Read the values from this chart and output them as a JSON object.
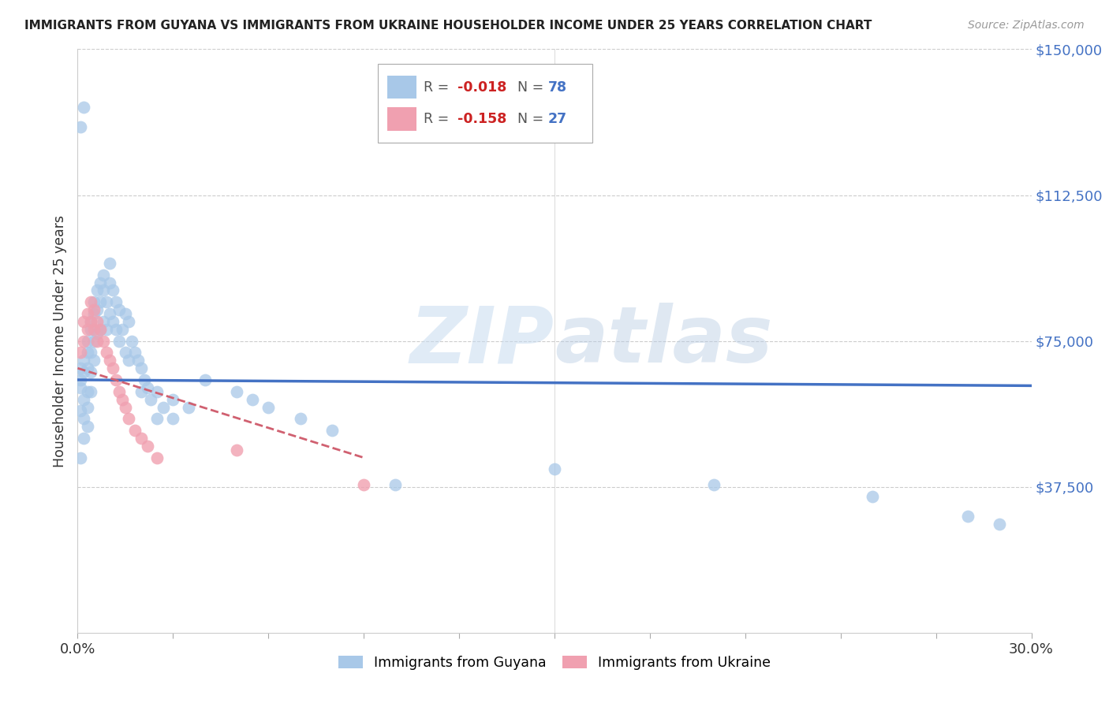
{
  "title": "IMMIGRANTS FROM GUYANA VS IMMIGRANTS FROM UKRAINE HOUSEHOLDER INCOME UNDER 25 YEARS CORRELATION CHART",
  "source": "Source: ZipAtlas.com",
  "ylabel": "Householder Income Under 25 years",
  "xlim": [
    0.0,
    0.3
  ],
  "ylim": [
    0,
    150000
  ],
  "yticks": [
    0,
    37500,
    75000,
    112500,
    150000
  ],
  "ytick_labels": [
    "",
    "$37,500",
    "$75,000",
    "$112,500",
    "$150,000"
  ],
  "watermark_zip": "ZIP",
  "watermark_atlas": "atlas",
  "legend_R1": "R = ",
  "legend_V1": "-0.018",
  "legend_N1_label": "N = ",
  "legend_N1_val": "78",
  "legend_R2": "R = ",
  "legend_V2": "-0.158",
  "legend_N2_label": "N = ",
  "legend_N2_val": "27",
  "color_guyana": "#a8c8e8",
  "color_ukraine": "#f0a0b0",
  "line_color_guyana": "#4472c4",
  "line_color_ukraine": "#d06070",
  "legend_text_color": "#555555",
  "legend_R_color": "#cc2222",
  "legend_N_color": "#4472c4",
  "background_color": "#ffffff",
  "guyana_x": [
    0.001,
    0.001,
    0.001,
    0.001,
    0.001,
    0.002,
    0.002,
    0.002,
    0.002,
    0.002,
    0.003,
    0.003,
    0.003,
    0.003,
    0.003,
    0.003,
    0.004,
    0.004,
    0.004,
    0.004,
    0.004,
    0.005,
    0.005,
    0.005,
    0.005,
    0.006,
    0.006,
    0.006,
    0.007,
    0.007,
    0.007,
    0.008,
    0.008,
    0.008,
    0.009,
    0.009,
    0.01,
    0.01,
    0.01,
    0.011,
    0.011,
    0.012,
    0.012,
    0.013,
    0.013,
    0.014,
    0.015,
    0.015,
    0.016,
    0.016,
    0.017,
    0.018,
    0.019,
    0.02,
    0.02,
    0.021,
    0.022,
    0.023,
    0.025,
    0.025,
    0.027,
    0.03,
    0.03,
    0.035,
    0.04,
    0.05,
    0.055,
    0.06,
    0.07,
    0.08,
    0.1,
    0.15,
    0.2,
    0.25,
    0.28,
    0.29,
    0.001,
    0.002
  ],
  "guyana_y": [
    63000,
    65000,
    68000,
    57000,
    45000,
    67000,
    70000,
    60000,
    55000,
    50000,
    72000,
    75000,
    68000,
    62000,
    58000,
    53000,
    80000,
    78000,
    72000,
    67000,
    62000,
    85000,
    82000,
    75000,
    70000,
    88000,
    83000,
    77000,
    90000,
    85000,
    78000,
    92000,
    88000,
    80000,
    85000,
    78000,
    95000,
    90000,
    82000,
    88000,
    80000,
    85000,
    78000,
    83000,
    75000,
    78000,
    82000,
    72000,
    80000,
    70000,
    75000,
    72000,
    70000,
    68000,
    62000,
    65000,
    63000,
    60000,
    62000,
    55000,
    58000,
    60000,
    55000,
    58000,
    65000,
    62000,
    60000,
    58000,
    55000,
    52000,
    38000,
    42000,
    38000,
    35000,
    30000,
    28000,
    130000,
    135000
  ],
  "ukraine_x": [
    0.001,
    0.002,
    0.002,
    0.003,
    0.003,
    0.004,
    0.004,
    0.005,
    0.005,
    0.006,
    0.006,
    0.007,
    0.008,
    0.009,
    0.01,
    0.011,
    0.012,
    0.013,
    0.014,
    0.015,
    0.016,
    0.018,
    0.02,
    0.022,
    0.025,
    0.05,
    0.09
  ],
  "ukraine_y": [
    72000,
    80000,
    75000,
    82000,
    78000,
    85000,
    80000,
    83000,
    78000,
    80000,
    75000,
    78000,
    75000,
    72000,
    70000,
    68000,
    65000,
    62000,
    60000,
    58000,
    55000,
    52000,
    50000,
    48000,
    45000,
    47000,
    38000
  ],
  "guyana_line_x": [
    0.0,
    0.3
  ],
  "guyana_line_y": [
    65000,
    63500
  ],
  "ukraine_line_x": [
    0.0,
    0.09
  ],
  "ukraine_line_y": [
    68000,
    45000
  ]
}
